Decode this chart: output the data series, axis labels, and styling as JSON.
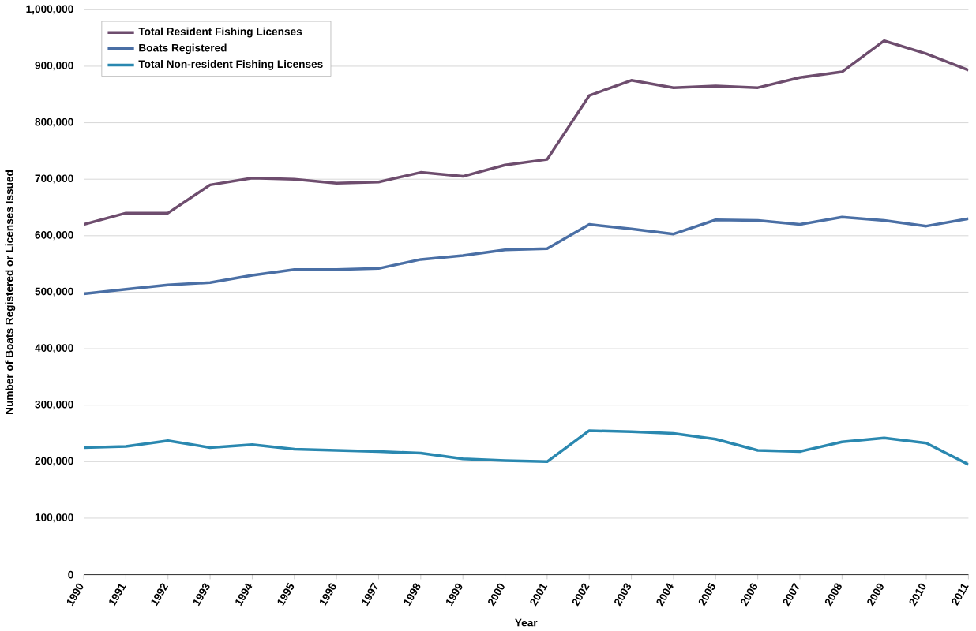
{
  "chart_data": {
    "type": "line",
    "xlabel": "Year",
    "ylabel": "Number of Boats Registered or Licenses Issued",
    "categories": [
      "1990",
      "1991",
      "1992",
      "1993",
      "1994",
      "1995",
      "1996",
      "1997",
      "1998",
      "1999",
      "2000",
      "2001",
      "2002",
      "2003",
      "2004",
      "2005",
      "2006",
      "2007",
      "2008",
      "2009",
      "2010",
      "2011"
    ],
    "series": [
      {
        "name": "Total Resident Fishing Licenses",
        "color": "#6e4d6e",
        "values": [
          620000,
          640000,
          640000,
          690000,
          702000,
          700000,
          693000,
          695000,
          712000,
          705000,
          725000,
          735000,
          848000,
          875000,
          862000,
          865000,
          862000,
          880000,
          890000,
          945000,
          922000,
          893000
        ]
      },
      {
        "name": "Boats Registered",
        "color": "#4a6fa5",
        "values": [
          497000,
          505000,
          513000,
          517000,
          530000,
          540000,
          540000,
          542000,
          558000,
          565000,
          575000,
          577000,
          620000,
          612000,
          603000,
          628000,
          627000,
          620000,
          633000,
          627000,
          617000,
          630000
        ]
      },
      {
        "name": "Total Non-resident Fishing Licenses",
        "color": "#2a88b0",
        "values": [
          225000,
          227000,
          237000,
          225000,
          230000,
          222000,
          220000,
          218000,
          215000,
          205000,
          202000,
          200000,
          255000,
          253000,
          250000,
          240000,
          220000,
          218000,
          235000,
          242000,
          233000,
          195000
        ]
      }
    ],
    "ylim": [
      0,
      1000000
    ],
    "yticks": [
      {
        "value": 0,
        "label": "0"
      },
      {
        "value": 100000,
        "label": "100,000"
      },
      {
        "value": 200000,
        "label": "200,000"
      },
      {
        "value": 300000,
        "label": "300,000"
      },
      {
        "value": 400000,
        "label": "400,000"
      },
      {
        "value": 500000,
        "label": "500,000"
      },
      {
        "value": 600000,
        "label": "600,000"
      },
      {
        "value": 700000,
        "label": "700,000"
      },
      {
        "value": 800000,
        "label": "800,000"
      },
      {
        "value": 900000,
        "label": "900,000"
      },
      {
        "value": 1000000,
        "label": "1,000,000"
      }
    ],
    "grid": "y",
    "legend": "top left",
    "marker": "none",
    "line_style": "solid"
  }
}
